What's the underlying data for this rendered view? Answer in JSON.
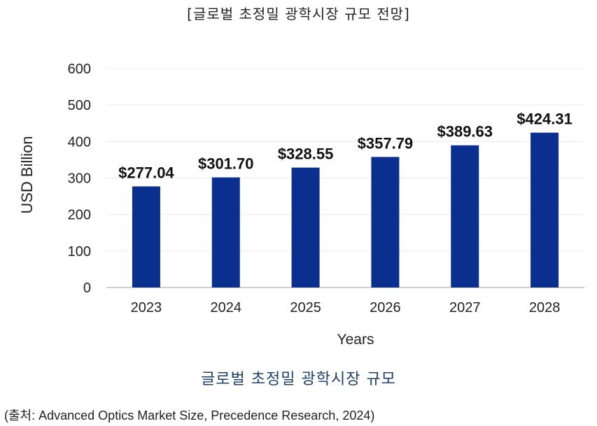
{
  "header": {
    "title": "[글로벌 초정밀 광학시장 규모 전망]"
  },
  "chart_data": {
    "type": "bar",
    "categories": [
      "2023",
      "2024",
      "2025",
      "2026",
      "2027",
      "2028"
    ],
    "values": [
      277.04,
      301.7,
      328.55,
      357.79,
      389.63,
      424.31
    ],
    "data_labels": [
      "$277.04",
      "$301.70",
      "$328.55",
      "$357.79",
      "$389.63",
      "$424.31"
    ],
    "xlabel": "Years",
    "ylabel": "USD Billion",
    "ylim": [
      0,
      600
    ],
    "yticks": [
      "0",
      "100",
      "200",
      "300",
      "400",
      "500",
      "600"
    ],
    "grid": true,
    "bar_color": "#0a2f8f"
  },
  "caption": "글로벌 초정밀 광학시장 규모",
  "source": "(출처: Advanced Optics Market Size, Precedence Research, 2024)"
}
